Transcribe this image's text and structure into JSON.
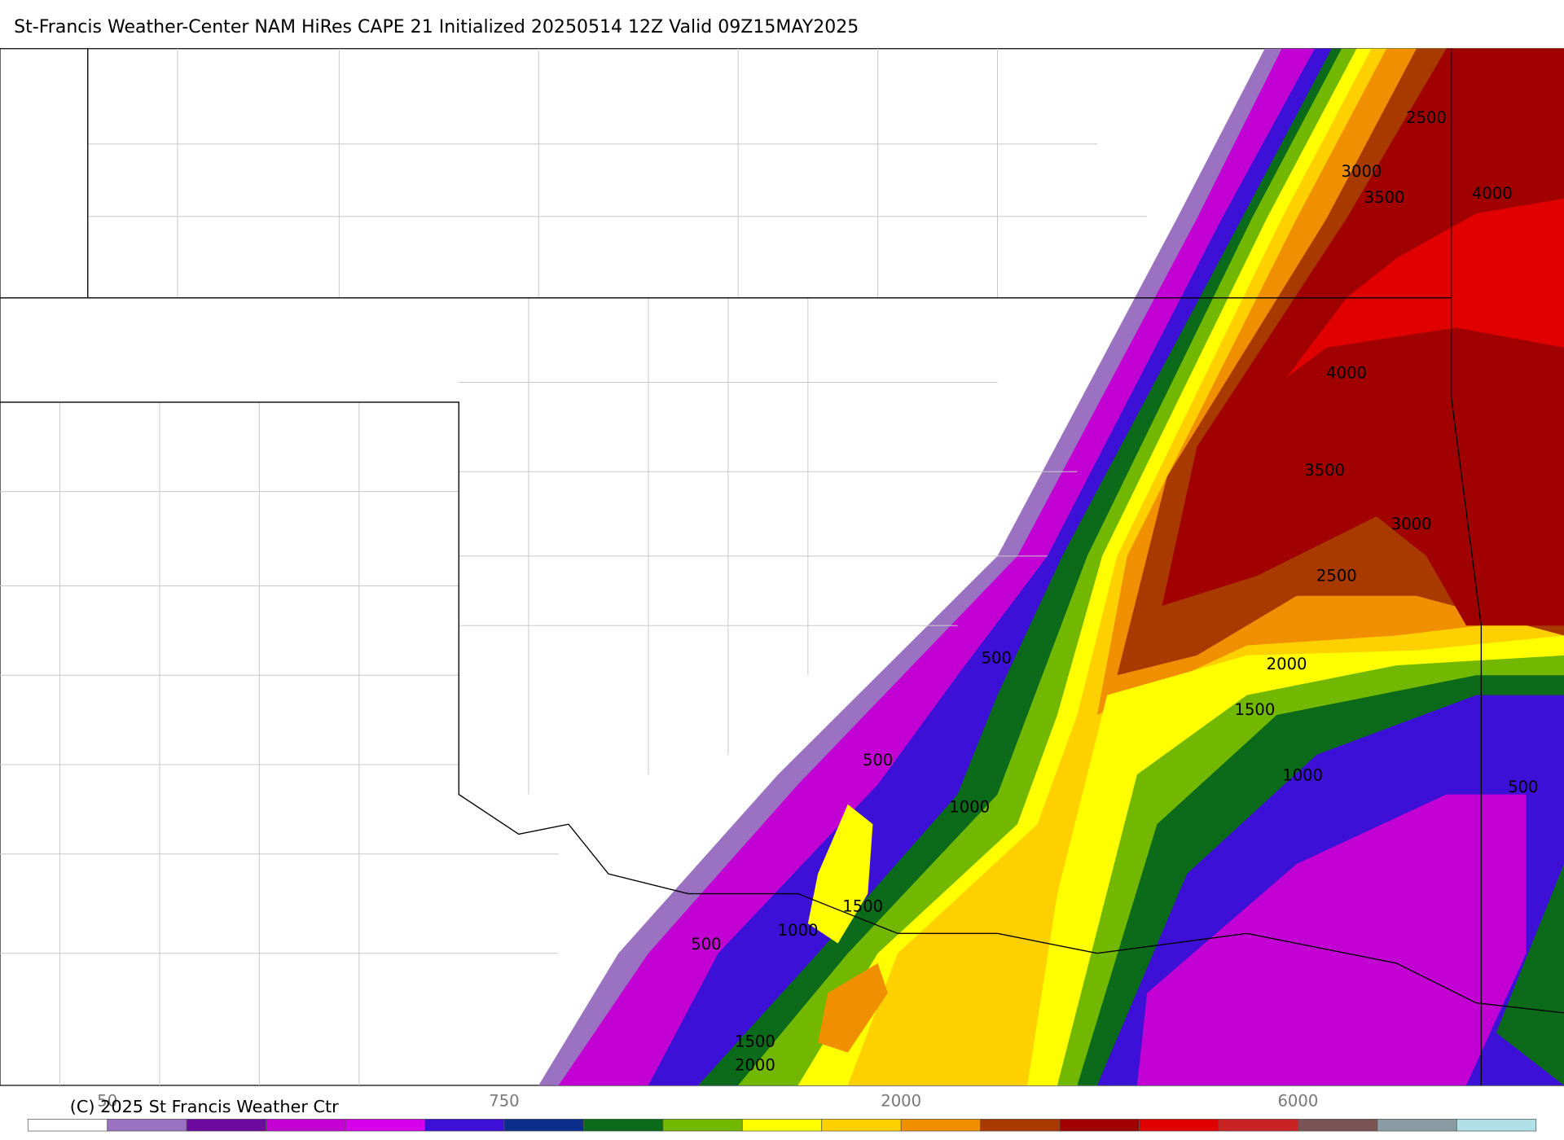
{
  "header": {
    "title": "St-Francis Weather-Center NAM HiRes CAPE  21 Initialized 20250514 12Z Valid 09Z15MAY2025"
  },
  "contour_labels": [
    "2500",
    "3000",
    "3500",
    "4000",
    "4000",
    "3500",
    "3000",
    "2500",
    "2000",
    "1500",
    "1000",
    "500",
    "500",
    "500",
    "1000",
    "1500",
    "1000",
    "500",
    "1500",
    "2000"
  ],
  "colorbar": {
    "colors": [
      "#ffffff",
      "#9b72c2",
      "#6c0aa0",
      "#c200d4",
      "#d600ea",
      "#3c10d6",
      "#0b2e8c",
      "#0b6b1a",
      "#72b800",
      "#ffff00",
      "#ffd000",
      "#f09000",
      "#a83a00",
      "#a00000",
      "#e00000",
      "#c82424",
      "#7a5454",
      "#8a9aa2",
      "#b0e0e8"
    ],
    "labels": [
      "50",
      "750",
      "2000",
      "6000"
    ]
  },
  "footer": {
    "copyright": "(C) 2025 St Francis Weather Ctr"
  }
}
